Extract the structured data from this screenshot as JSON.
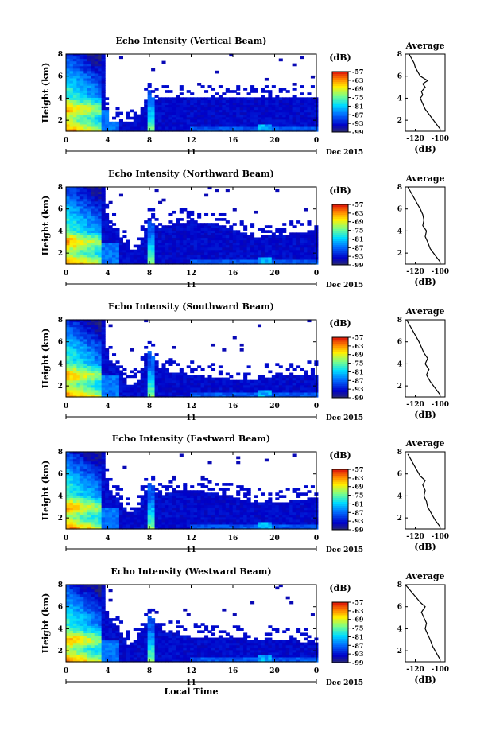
{
  "chart_data": [
    {
      "type": "heatmap",
      "title": "Echo Intensity (Vertical Beam)",
      "ylabel": "Height (km)",
      "xlabel": "",
      "xticks": [
        "0",
        "4",
        "8",
        "12",
        "16",
        "20",
        "0"
      ],
      "yticks": [
        "2",
        "4",
        "6",
        "8"
      ],
      "xlim": [
        0,
        24
      ],
      "ylim": [
        1,
        8
      ],
      "date_label": "11",
      "date_suffix": "Dec 2015",
      "colorbar": {
        "unit": "(dB)",
        "ticks": [
          "-57",
          "-63",
          "-69",
          "-75",
          "-81",
          "-87",
          "-93",
          "-99"
        ],
        "range": [
          -99,
          -57
        ]
      },
      "boundary": {
        "t": [
          3.5,
          4,
          5,
          6,
          7,
          7.6,
          8,
          8.3,
          8.7,
          9,
          10,
          12,
          14,
          16,
          18,
          20,
          22,
          24
        ],
        "h": [
          9,
          2,
          1.9,
          1.6,
          2.5,
          3.8,
          4.8,
          4.2,
          3.8,
          3.9,
          4.1,
          4.0,
          4.0,
          4.0,
          4.0,
          4.0,
          4.0,
          4.0
        ]
      },
      "avg_profile": {
        "title": "Average",
        "xlabel": "(dB)",
        "xticks": [
          "-120",
          "-100"
        ],
        "yticks": [
          "2",
          "4",
          "6",
          "8"
        ],
        "xlim": [
          -128,
          -96
        ],
        "ylim": [
          1,
          8
        ],
        "height": [
          1.2,
          1.8,
          2.4,
          3.0,
          3.5,
          4.0,
          4.3,
          4.6,
          5.0,
          5.3,
          5.6,
          5.8,
          6.0,
          6.4,
          6.8,
          7.2,
          7.6,
          8.0
        ],
        "db": [
          -100,
          -104,
          -108,
          -112,
          -114,
          -116,
          -114,
          -115,
          -112,
          -114,
          -110,
          -113,
          -116,
          -118,
          -120,
          -121,
          -123,
          -125
        ]
      }
    },
    {
      "type": "heatmap",
      "title": "Echo Intensity (Northward Beam)",
      "ylabel": "Height (km)",
      "xlabel": "",
      "xticks": [
        "0",
        "4",
        "8",
        "12",
        "16",
        "20",
        "0"
      ],
      "yticks": [
        "2",
        "4",
        "6",
        "8"
      ],
      "xlim": [
        0,
        24
      ],
      "ylim": [
        1,
        8
      ],
      "date_label": "11",
      "date_suffix": "Dec 2015",
      "colorbar": {
        "unit": "(dB)",
        "ticks": [
          "-57",
          "-63",
          "-69",
          "-75",
          "-81",
          "-87",
          "-93",
          "-99"
        ],
        "range": [
          -99,
          -57
        ]
      },
      "boundary": {
        "t": [
          3.5,
          4,
          5,
          6,
          7,
          7.6,
          8,
          8.3,
          8.7,
          9,
          10,
          12,
          14,
          16,
          18,
          20,
          22,
          24
        ],
        "h": [
          9,
          4.8,
          4.0,
          2.2,
          2.5,
          4.3,
          5.0,
          4.8,
          4.2,
          4.3,
          4.6,
          4.9,
          4.7,
          4.2,
          3.5,
          3.6,
          3.8,
          4.0
        ]
      },
      "avg_profile": {
        "title": "Average",
        "xlabel": "(dB)",
        "xticks": [
          "-120",
          "-100"
        ],
        "yticks": [
          "2",
          "4",
          "6",
          "8"
        ],
        "xlim": [
          -128,
          -96
        ],
        "ylim": [
          1,
          8
        ],
        "height": [
          1.2,
          1.8,
          2.4,
          3.0,
          3.5,
          4.0,
          4.5,
          5.0,
          5.5,
          6.0,
          6.4,
          6.8,
          7.2,
          7.6,
          8.0
        ],
        "db": [
          -100,
          -104,
          -108,
          -110,
          -112,
          -111,
          -114,
          -113,
          -114,
          -116,
          -118,
          -120,
          -122,
          -124,
          -126
        ]
      }
    },
    {
      "type": "heatmap",
      "title": "Echo Intensity (Southward Beam)",
      "ylabel": "Height (km)",
      "xlabel": "",
      "xticks": [
        "0",
        "4",
        "8",
        "12",
        "16",
        "20",
        "0"
      ],
      "yticks": [
        "2",
        "4",
        "6",
        "8"
      ],
      "xlim": [
        0,
        24
      ],
      "ylim": [
        1,
        8
      ],
      "date_label": "11",
      "date_suffix": "Dec 2015",
      "colorbar": {
        "unit": "(dB)",
        "ticks": [
          "-57",
          "-63",
          "-69",
          "-75",
          "-81",
          "-87",
          "-93",
          "-99"
        ],
        "range": [
          -99,
          -57
        ]
      },
      "boundary": {
        "t": [
          3.5,
          4,
          5,
          6,
          7,
          7.6,
          8,
          8.3,
          8.7,
          9,
          10,
          12,
          14,
          16,
          18,
          20,
          22,
          24
        ],
        "h": [
          9,
          4.5,
          3.8,
          2.0,
          2.6,
          4.5,
          5.2,
          4.8,
          4.0,
          3.6,
          3.3,
          3.0,
          2.8,
          2.6,
          2.6,
          2.9,
          3.0,
          3.0
        ]
      },
      "avg_profile": {
        "title": "Average",
        "xlabel": "(dB)",
        "xticks": [
          "-120",
          "-100"
        ],
        "yticks": [
          "2",
          "4",
          "6",
          "8"
        ],
        "xlim": [
          -128,
          -96
        ],
        "ylim": [
          1,
          8
        ],
        "height": [
          1.2,
          1.8,
          2.4,
          3.0,
          3.5,
          4.0,
          4.5,
          5.0,
          5.5,
          6.0,
          6.4,
          6.8,
          7.2,
          7.6,
          8.0
        ],
        "db": [
          -100,
          -104,
          -108,
          -111,
          -109,
          -112,
          -110,
          -113,
          -115,
          -117,
          -119,
          -121,
          -123,
          -125,
          -127
        ]
      }
    },
    {
      "type": "heatmap",
      "title": "Echo Intensity (Eastward Beam)",
      "ylabel": "Height (km)",
      "xlabel": "",
      "xticks": [
        "0",
        "4",
        "8",
        "12",
        "16",
        "20",
        "0"
      ],
      "yticks": [
        "2",
        "4",
        "6",
        "8"
      ],
      "xlim": [
        0,
        24
      ],
      "ylim": [
        1,
        8
      ],
      "date_label": "11",
      "date_suffix": "Dec 2015",
      "colorbar": {
        "unit": "(dB)",
        "ticks": [
          "-57",
          "-63",
          "-69",
          "-75",
          "-81",
          "-87",
          "-93",
          "-99"
        ],
        "range": [
          -99,
          -57
        ]
      },
      "boundary": {
        "t": [
          3.5,
          4,
          5,
          6,
          7,
          7.6,
          8,
          8.3,
          8.7,
          9,
          10,
          12,
          14,
          16,
          18,
          20,
          22,
          24
        ],
        "h": [
          9,
          4.5,
          3.8,
          2.5,
          3.0,
          4.5,
          5.3,
          5.0,
          4.2,
          4.0,
          4.4,
          4.6,
          4.3,
          3.9,
          3.5,
          3.3,
          3.6,
          3.8
        ]
      },
      "avg_profile": {
        "title": "Average",
        "xlabel": "(dB)",
        "xticks": [
          "-120",
          "-100"
        ],
        "yticks": [
          "2",
          "4",
          "6",
          "8"
        ],
        "xlim": [
          -128,
          -96
        ],
        "ylim": [
          1,
          8
        ],
        "height": [
          1.2,
          1.8,
          2.4,
          3.0,
          3.5,
          4.0,
          4.5,
          5.0,
          5.4,
          5.8,
          6.2,
          6.6,
          7.0,
          7.4,
          7.8
        ],
        "db": [
          -100,
          -104,
          -107,
          -110,
          -111,
          -113,
          -112,
          -114,
          -112,
          -116,
          -118,
          -120,
          -122,
          -124,
          -126
        ]
      }
    },
    {
      "type": "heatmap",
      "title": "Echo Intensity (Westward Beam)",
      "ylabel": "Height (km)",
      "xlabel": "Local Time",
      "xticks": [
        "0",
        "4",
        "8",
        "12",
        "16",
        "20",
        "0"
      ],
      "yticks": [
        "2",
        "4",
        "6",
        "8"
      ],
      "xlim": [
        0,
        24
      ],
      "ylim": [
        1,
        8
      ],
      "date_label": "11",
      "date_suffix": "Dec 2015",
      "colorbar": {
        "unit": "(dB)",
        "ticks": [
          "-57",
          "-63",
          "-69",
          "-75",
          "-81",
          "-87",
          "-93",
          "-99"
        ],
        "range": [
          -99,
          -57
        ]
      },
      "boundary": {
        "t": [
          3.5,
          4,
          5,
          6,
          7,
          7.6,
          8,
          8.3,
          8.7,
          9,
          10,
          12,
          14,
          16,
          18,
          20,
          22,
          24
        ],
        "h": [
          9,
          4.8,
          4.2,
          2.5,
          3.0,
          4.5,
          5.3,
          5.0,
          4.2,
          4.0,
          3.6,
          3.3,
          3.2,
          3.2,
          3.0,
          3.0,
          2.9,
          2.8
        ]
      },
      "avg_profile": {
        "title": "Average",
        "xlabel": "(dB)",
        "xticks": [
          "-120",
          "-100"
        ],
        "yticks": [
          "2",
          "4",
          "6",
          "8"
        ],
        "xlim": [
          -128,
          -96
        ],
        "ylim": [
          1,
          8
        ],
        "height": [
          1.2,
          1.8,
          2.4,
          3.0,
          3.5,
          4.0,
          4.5,
          5.0,
          5.5,
          6.0,
          6.4,
          6.8,
          7.2,
          7.6,
          8.0
        ],
        "db": [
          -100,
          -103,
          -106,
          -108,
          -110,
          -112,
          -111,
          -113,
          -115,
          -112,
          -116,
          -119,
          -122,
          -125,
          -128
        ]
      }
    }
  ]
}
